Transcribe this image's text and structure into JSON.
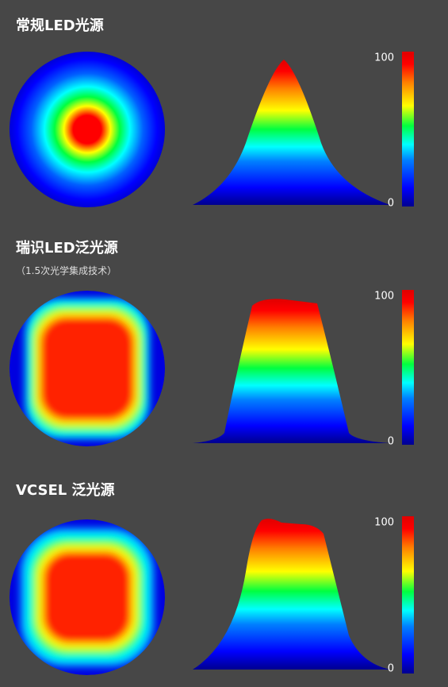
{
  "panels": [
    {
      "title": "常规LED光源",
      "colorbar": {
        "max": 100,
        "min": 0
      }
    },
    {
      "title": "瑞识LED泛光源",
      "subtitle": "（1.5次光学集成技术）",
      "colorbar": {
        "max": 100,
        "min": 0
      }
    },
    {
      "title": "VCSEL 泛光源",
      "colorbar": {
        "max": 100,
        "min": 0
      }
    }
  ]
}
